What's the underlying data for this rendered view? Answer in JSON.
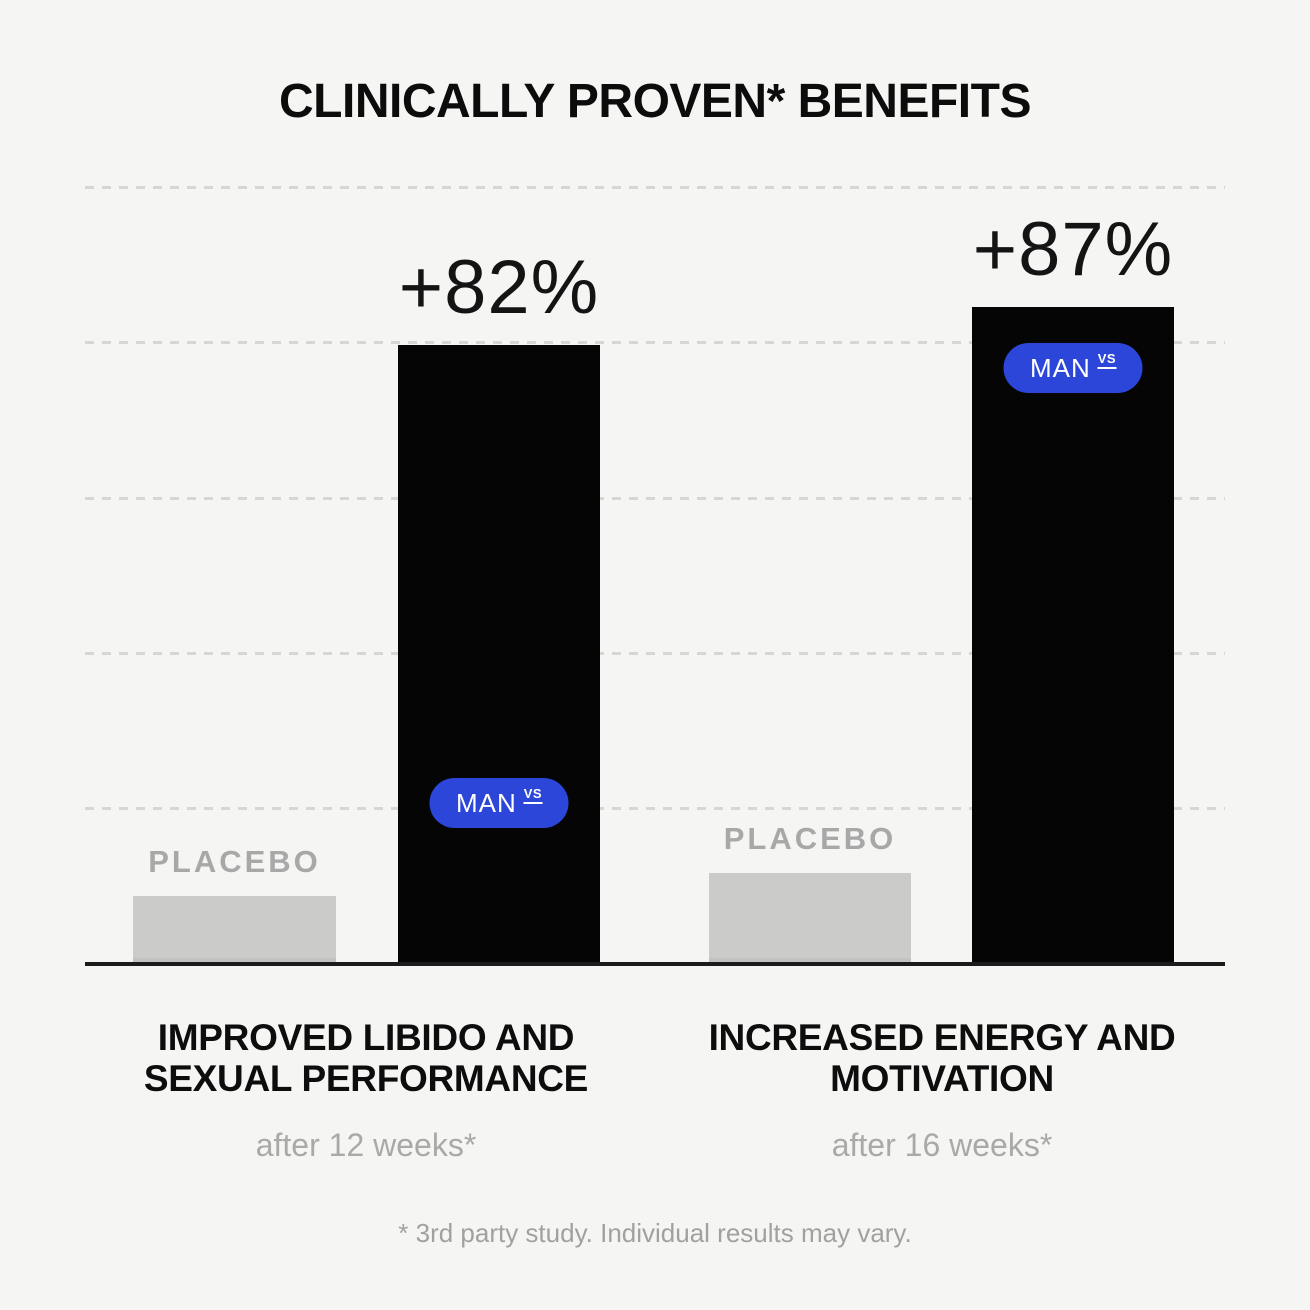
{
  "title": "CLINICALLY PROVEN* BENEFITS",
  "footnote": "* 3rd party study. Individual results may vary.",
  "brand_pill": {
    "label": "MAN",
    "suffix": "VS",
    "color": "#2b46d8",
    "text_color": "#ffffff"
  },
  "colors": {
    "background": "#f5f5f3",
    "man_bar": "#050505",
    "placebo_bar": "#cbcbca",
    "gridline": "#d6d6d3",
    "axis": "#1b1b1b",
    "muted_text": "#a8a8a8",
    "heading_text": "#0c0c0c"
  },
  "chart_data": {
    "type": "bar",
    "title": "CLINICALLY PROVEN* BENEFITS",
    "unit": "percent improvement vs placebo",
    "ylim": [
      0,
      112
    ],
    "grid": "5 dashed horizontal gridlines, unlabeled, light gray",
    "legend_position": "pill labels inside MAN bars, PLACEBO labels above placebo bars",
    "groups": [
      {
        "category": "IMPROVED LIBIDO AND SEXUAL PERFORMANCE",
        "category_lines": [
          "IMPROVED LIBIDO AND",
          "SEXUAL PERFORMANCE"
        ],
        "duration": "after 12 weeks*",
        "series": [
          {
            "name": "PLACEBO",
            "label": "PLACEBO",
            "value": 9
          },
          {
            "name": "MAN",
            "label": "+82%",
            "value": 82
          }
        ]
      },
      {
        "category": "INCREASED ENERGY AND MOTIVATION",
        "category_lines": [
          "INCREASED ENERGY AND",
          "MOTIVATION"
        ],
        "duration": "after 16 weeks*",
        "series": [
          {
            "name": "PLACEBO",
            "label": "PLACEBO",
            "value": 12
          },
          {
            "name": "MAN",
            "label": "+87%",
            "value": 87
          }
        ]
      }
    ]
  }
}
